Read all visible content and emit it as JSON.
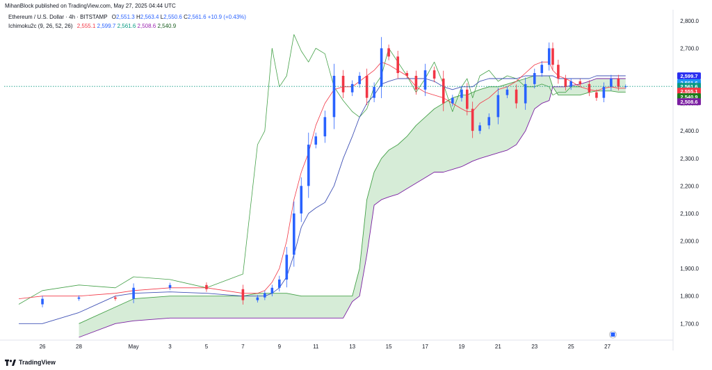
{
  "header": {
    "published": "MihanBlock published on TradingView.com, May 27, 2025 04:44 UTC"
  },
  "legend": {
    "symbol": "Ethereum / U.S. Dollar · 4h · BITSTAMP",
    "open_key": "O",
    "open": "2,551.3",
    "high_key": "H",
    "high": "2,563.4",
    "low_key": "L",
    "low": "2,550.6",
    "close_key": "C",
    "close": "2,561.6",
    "change": "+10.9 (+0.43%)",
    "indicator": "Ichimoku2c (9, 26, 52, 26)",
    "ind_values": [
      "2,555.1",
      "2,599.7",
      "2,561.6",
      "2,508.6",
      "2,540.9"
    ],
    "ind_colors": [
      "#f23645",
      "#2962ff",
      "#089981",
      "#9c27b0",
      "#1b5e20"
    ]
  },
  "footer": {
    "brand": "TradingView"
  },
  "colors": {
    "up": "#2962ff",
    "down": "#f23645",
    "tenkan": "#f23645",
    "kijun": "#3f51b5",
    "chikou": "#43a047",
    "senkou_a": "#43a047",
    "senkou_b": "#7b1fa2",
    "cloud": "#c8e6c9",
    "lastline": "#089981"
  },
  "price_tags": [
    {
      "label": "2,599.7",
      "value": 2599.7,
      "bg": "#2a2ef0"
    },
    {
      "label": "2,561.6",
      "value": 2575,
      "bg": "#2196f3",
      "sub": "03:15:38"
    },
    {
      "label": "2,561.6",
      "value": 2561.6,
      "bg": "#089981"
    },
    {
      "label": "2,555.1",
      "value": 2544,
      "bg": "#f23645"
    },
    {
      "label": "2,540.9",
      "value": 2524,
      "bg": "#1b7a1b"
    },
    {
      "label": "2,508.6",
      "value": 2506,
      "bg": "#7b1fa2"
    }
  ],
  "chart_data": {
    "type": "candlestick",
    "ylim": [
      1640,
      2840
    ],
    "y_ticks": [
      "2,800.0",
      "2,700.0",
      "2,600.0",
      "2,500.0",
      "2,400.0",
      "2,300.0",
      "2,200.0",
      "2,100.0",
      "2,000.0",
      "1,900.0",
      "1,800.0",
      "1,700.0"
    ],
    "y_tick_values": [
      2800,
      2700,
      2600,
      2500,
      2400,
      2300,
      2200,
      2100,
      2000,
      1900,
      1800,
      1700
    ],
    "x_labels": [
      "26",
      "28",
      "May",
      "3",
      "5",
      "7",
      "9",
      "11",
      "13",
      "15",
      "17",
      "19",
      "21",
      "23",
      "25",
      "27"
    ],
    "x_label_days": [
      -5,
      -3,
      0,
      2,
      4,
      6,
      8,
      10,
      12,
      14,
      16,
      18,
      20,
      22,
      24,
      26
    ],
    "last_price": 2561.6,
    "series": {
      "days": [
        -6.3,
        -5,
        -3,
        -1,
        0,
        2,
        4,
        6,
        6.8,
        7.2,
        7.6,
        8,
        8.4,
        8.8,
        9.2,
        9.6,
        10,
        10.5,
        11,
        11.5,
        12,
        12.4,
        12.8,
        13.2,
        13.6,
        14,
        14.5,
        15,
        15.5,
        16,
        16.5,
        17,
        17.5,
        18,
        18.3,
        18.6,
        19,
        19.5,
        20,
        20.5,
        21,
        21.5,
        22,
        22.4,
        22.8,
        23,
        23.3,
        23.7,
        24,
        24.5,
        25,
        25.4,
        25.8,
        26.2,
        26.6,
        27
      ],
      "close": [
        1770,
        1790,
        1795,
        1790,
        1830,
        1840,
        1825,
        1785,
        1795,
        1810,
        1830,
        1860,
        1950,
        2100,
        2200,
        2350,
        2380,
        2450,
        2600,
        2540,
        2570,
        2600,
        2520,
        2560,
        2700,
        2670,
        2610,
        2600,
        2550,
        2620,
        2590,
        2500,
        2520,
        2550,
        2480,
        2400,
        2420,
        2450,
        2530,
        2550,
        2500,
        2570,
        2610,
        2640,
        2700,
        2640,
        2590,
        2560,
        2580,
        2570,
        2540,
        2520,
        2560,
        2590,
        2560,
        2562
      ],
      "tenkan": [
        1790,
        1800,
        1800,
        1810,
        1820,
        1830,
        1830,
        1810,
        1810,
        1820,
        1850,
        1900,
        2000,
        2150,
        2250,
        2320,
        2420,
        2500,
        2550,
        2560,
        2560,
        2580,
        2600,
        2620,
        2650,
        2640,
        2620,
        2600,
        2560,
        2540,
        2530,
        2520,
        2500,
        2480,
        2470,
        2470,
        2500,
        2520,
        2550,
        2560,
        2580,
        2610,
        2640,
        2650,
        2650,
        2620,
        2600,
        2590,
        2580,
        2560,
        2550,
        2545,
        2555,
        2560,
        2555,
        2555
      ],
      "kijun": [
        1700,
        1700,
        1740,
        1800,
        1810,
        1815,
        1810,
        1800,
        1800,
        1800,
        1810,
        1830,
        1870,
        1950,
        2050,
        2100,
        2120,
        2140,
        2200,
        2300,
        2380,
        2450,
        2500,
        2530,
        2570,
        2580,
        2590,
        2590,
        2590,
        2590,
        2580,
        2560,
        2550,
        2560,
        2560,
        2560,
        2580,
        2590,
        2590,
        2590,
        2590,
        2600,
        2600,
        2600,
        2600,
        2600,
        2590,
        2590,
        2590,
        2590,
        2590,
        2600,
        2600,
        2600,
        2600,
        2600
      ],
      "span_a": [
        null,
        null,
        1700,
        1760,
        1790,
        1800,
        1800,
        1800,
        1810,
        1810,
        1810,
        1810,
        1810,
        1805,
        1800,
        1800,
        1800,
        1800,
        1800,
        1800,
        1800,
        1900,
        2150,
        2250,
        2300,
        2330,
        2350,
        2380,
        2420,
        2450,
        2480,
        2500,
        2520,
        2530,
        2530,
        2540,
        2550,
        2560,
        2560,
        2570,
        2580,
        2590,
        2600,
        2600,
        2600,
        2560,
        2530,
        2530,
        2530,
        2530,
        2540,
        2545,
        2545,
        2545,
        2541,
        2541
      ],
      "span_b": [
        null,
        null,
        1650,
        1700,
        1710,
        1720,
        1720,
        1720,
        1720,
        1720,
        1720,
        1720,
        1720,
        1720,
        1720,
        1720,
        1720,
        1720,
        1720,
        1720,
        1780,
        1800,
        1950,
        2130,
        2150,
        2160,
        2170,
        2190,
        2210,
        2230,
        2250,
        2250,
        2260,
        2270,
        2280,
        2290,
        2300,
        2310,
        2320,
        2330,
        2350,
        2400,
        2480,
        2500,
        2510,
        2560,
        2560,
        2560,
        2565,
        2570,
        2580,
        2590,
        2590,
        2590,
        2590,
        2590
      ],
      "chikou": [
        1770,
        1820,
        1840,
        1830,
        1870,
        1860,
        1830,
        1880,
        2350,
        2400,
        2700,
        2560,
        2600,
        2750,
        2690,
        2650,
        2700,
        2680,
        2560,
        2510,
        2470,
        2450,
        2480,
        2560,
        2600,
        2700,
        2650,
        2600,
        2540,
        2590,
        2650,
        2570,
        2470,
        2560,
        2590,
        2520,
        2600,
        2620,
        2580,
        2600,
        2590,
        2560,
        2560,
        2570,
        2560,
        2530,
        2540,
        2540,
        2560,
        2560,
        null,
        null,
        null,
        null,
        null,
        null
      ]
    }
  }
}
